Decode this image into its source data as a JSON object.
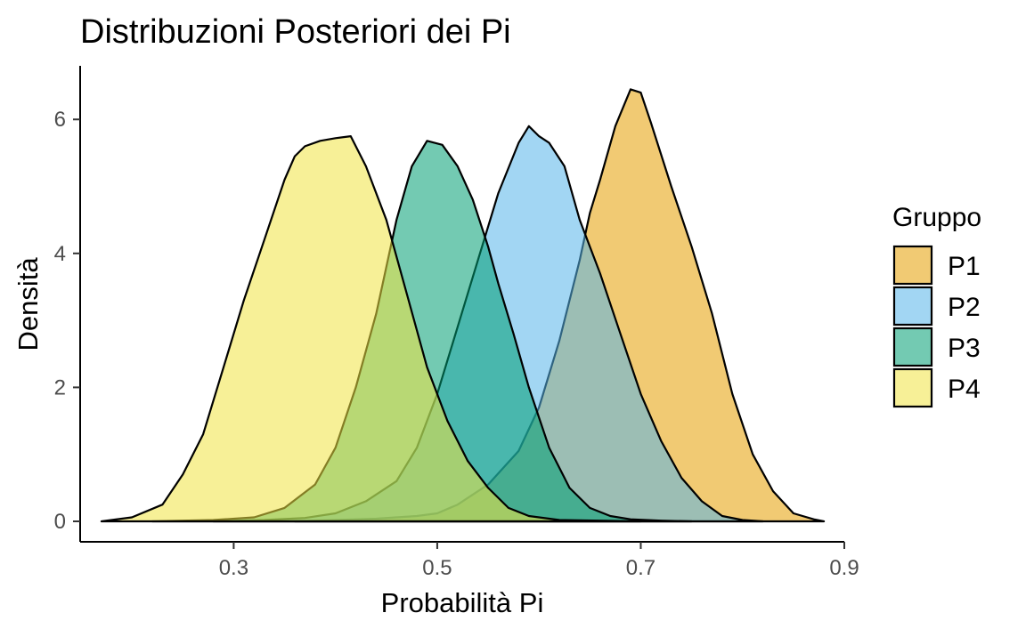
{
  "chart_data": {
    "type": "area",
    "subtype": "density",
    "title": "Distribuzioni Posteriori dei Pi",
    "xlabel": "Probabilità Pi",
    "ylabel": "Densità",
    "xlim": [
      0.15,
      0.9
    ],
    "ylim": [
      0,
      6.8
    ],
    "xticks": [
      0.3,
      0.5,
      0.7,
      0.9
    ],
    "xtick_labels": [
      "0.3",
      "0.5",
      "0.7",
      "0.9"
    ],
    "yticks": [
      0,
      2,
      4,
      6
    ],
    "ytick_labels": [
      "0",
      "2",
      "4",
      "6"
    ],
    "grid": false,
    "legend_title": "Gruppo",
    "legend_position": "right",
    "series": [
      {
        "name": "P1",
        "color": "#E69F00",
        "x": [
          0.36,
          0.4,
          0.44,
          0.48,
          0.5,
          0.52,
          0.55,
          0.58,
          0.6,
          0.62,
          0.64,
          0.65,
          0.66,
          0.675,
          0.69,
          0.7,
          0.71,
          0.73,
          0.75,
          0.77,
          0.79,
          0.81,
          0.83,
          0.85,
          0.87,
          0.88
        ],
        "y": [
          0.0,
          0.02,
          0.04,
          0.08,
          0.12,
          0.25,
          0.55,
          1.05,
          1.7,
          2.7,
          3.9,
          4.6,
          5.1,
          5.9,
          6.45,
          6.4,
          5.95,
          5.0,
          4.1,
          3.1,
          1.9,
          1.0,
          0.45,
          0.12,
          0.03,
          0.0
        ]
      },
      {
        "name": "P2",
        "color": "#56B4E9",
        "x": [
          0.28,
          0.33,
          0.37,
          0.4,
          0.43,
          0.46,
          0.48,
          0.5,
          0.52,
          0.54,
          0.56,
          0.58,
          0.59,
          0.6,
          0.61,
          0.625,
          0.64,
          0.66,
          0.68,
          0.7,
          0.72,
          0.74,
          0.76,
          0.78,
          0.8,
          0.82
        ],
        "y": [
          0.0,
          0.02,
          0.05,
          0.12,
          0.3,
          0.6,
          1.1,
          1.9,
          2.9,
          3.9,
          4.9,
          5.65,
          5.9,
          5.75,
          5.65,
          5.3,
          4.5,
          3.7,
          2.8,
          1.9,
          1.2,
          0.65,
          0.3,
          0.08,
          0.02,
          0.0
        ]
      },
      {
        "name": "P3",
        "color": "#009E73",
        "x": [
          0.22,
          0.28,
          0.32,
          0.35,
          0.38,
          0.4,
          0.42,
          0.44,
          0.46,
          0.475,
          0.49,
          0.505,
          0.52,
          0.535,
          0.55,
          0.56,
          0.575,
          0.59,
          0.61,
          0.63,
          0.65,
          0.67,
          0.69,
          0.72,
          0.75
        ],
        "y": [
          0.0,
          0.02,
          0.06,
          0.2,
          0.55,
          1.1,
          2.0,
          3.1,
          4.5,
          5.3,
          5.68,
          5.62,
          5.3,
          4.8,
          4.1,
          3.55,
          2.8,
          2.0,
          1.1,
          0.5,
          0.2,
          0.08,
          0.03,
          0.01,
          0.0
        ]
      },
      {
        "name": "P4",
        "color": "#F0E442",
        "x": [
          0.17,
          0.2,
          0.23,
          0.25,
          0.27,
          0.29,
          0.31,
          0.33,
          0.35,
          0.36,
          0.37,
          0.385,
          0.4,
          0.415,
          0.43,
          0.45,
          0.47,
          0.49,
          0.51,
          0.53,
          0.55,
          0.57,
          0.59,
          0.62,
          0.66,
          0.7
        ],
        "y": [
          0.0,
          0.06,
          0.25,
          0.7,
          1.3,
          2.3,
          3.3,
          4.2,
          5.1,
          5.45,
          5.6,
          5.68,
          5.72,
          5.75,
          5.3,
          4.5,
          3.4,
          2.3,
          1.5,
          0.9,
          0.5,
          0.2,
          0.08,
          0.02,
          0.01,
          0.0
        ]
      }
    ]
  }
}
